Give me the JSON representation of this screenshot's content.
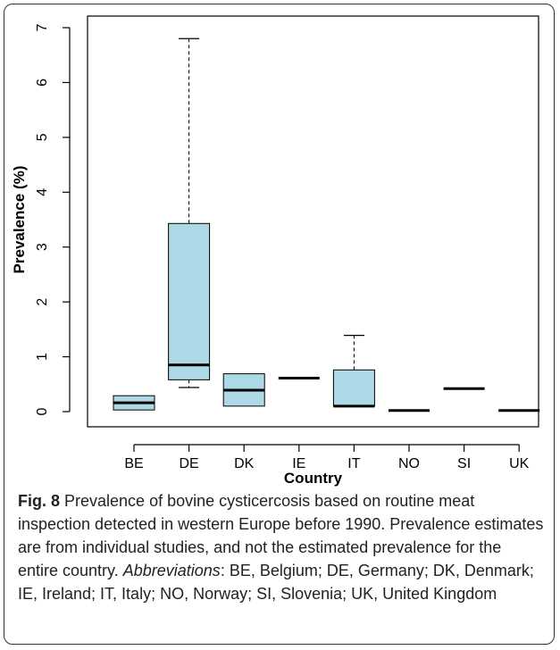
{
  "chart_data": {
    "type": "box",
    "xlabel": "Country",
    "ylabel": "Prevalence (%)",
    "ylim": [
      0,
      7
    ],
    "yticks": [
      "0",
      "1",
      "2",
      "3",
      "4",
      "5",
      "6",
      "7"
    ],
    "grid": false,
    "box_color": "#add8e6",
    "categories": [
      "BE",
      "DE",
      "DK",
      "IE",
      "IT",
      "NO",
      "SI",
      "UK"
    ],
    "boxes": [
      {
        "category": "BE",
        "min": 0.03,
        "q1": 0.03,
        "median": 0.16,
        "q3": 0.29,
        "max": 0.29
      },
      {
        "category": "DE",
        "min": 0.44,
        "q1": 0.58,
        "median": 0.85,
        "q3": 3.43,
        "max": 6.8
      },
      {
        "category": "DK",
        "min": 0.1,
        "q1": 0.1,
        "median": 0.39,
        "q3": 0.69,
        "max": 0.69
      },
      {
        "category": "IE",
        "min": 0.61,
        "q1": 0.61,
        "median": 0.61,
        "q3": 0.61,
        "max": 0.61
      },
      {
        "category": "IT",
        "min": 0.1,
        "q1": 0.1,
        "median": 0.1,
        "q3": 0.76,
        "max": 1.39
      },
      {
        "category": "NO",
        "min": 0.02,
        "q1": 0.02,
        "median": 0.02,
        "q3": 0.02,
        "max": 0.02
      },
      {
        "category": "SI",
        "min": 0.42,
        "q1": 0.42,
        "median": 0.42,
        "q3": 0.42,
        "max": 0.42
      },
      {
        "category": "UK",
        "min": 0.02,
        "q1": 0.02,
        "median": 0.02,
        "q3": 0.02,
        "max": 0.02
      }
    ]
  },
  "caption": {
    "fig_label": "Fig. 8",
    "text_1": " Prevalence of bovine cysticercosis based on routine meat inspection detected in western Europe before 1990. Prevalence estimates are from individual studies, and not the estimated prevalence for the entire country. ",
    "abbrev_label": "Abbreviations",
    "text_2": ": BE, Belgium; DE, Germany; DK, Denmark; IE, Ireland; IT, Italy; NO, Norway; SI, Slovenia; UK, United Kingdom"
  }
}
